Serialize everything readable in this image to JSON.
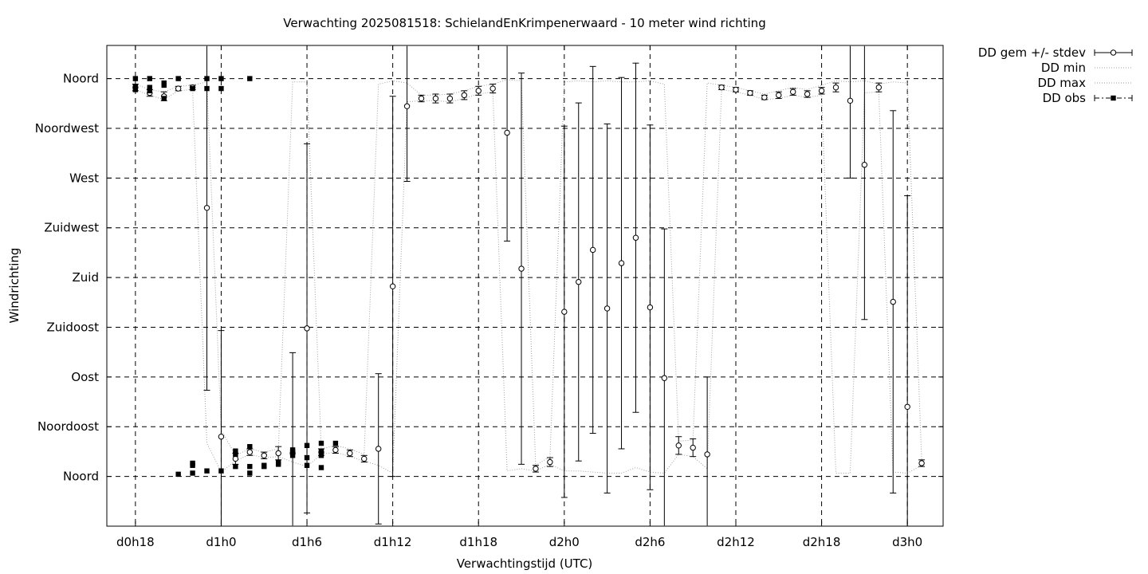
{
  "chart_data": {
    "type": "scatter",
    "title": "Verwachting 2025081518: SchielandEnKrimpenerwaard - 10 meter wind richting",
    "xlabel": "Verwachtingstijd (UTC)",
    "ylabel": "Windrichting",
    "x_unit": "hours since d0h18",
    "xlim": [
      -2,
      56.5
    ],
    "ylim": [
      -45,
      390
    ],
    "x_ticks": [
      {
        "x": 0,
        "label": "d0h18"
      },
      {
        "x": 6,
        "label": "d1h0"
      },
      {
        "x": 12,
        "label": "d1h6"
      },
      {
        "x": 18,
        "label": "d1h12"
      },
      {
        "x": 24,
        "label": "d1h18"
      },
      {
        "x": 30,
        "label": "d2h0"
      },
      {
        "x": 36,
        "label": "d2h6"
      },
      {
        "x": 42,
        "label": "d2h12"
      },
      {
        "x": 48,
        "label": "d2h18"
      },
      {
        "x": 54,
        "label": "d3h0"
      }
    ],
    "y_ticks": [
      {
        "y": 0,
        "label": "Noord"
      },
      {
        "y": 45,
        "label": "Noordoost"
      },
      {
        "y": 90,
        "label": "Oost"
      },
      {
        "y": 135,
        "label": "Zuidoost"
      },
      {
        "y": 180,
        "label": "Zuid"
      },
      {
        "y": 225,
        "label": "Zuidwest"
      },
      {
        "y": 270,
        "label": "West"
      },
      {
        "y": 315,
        "label": "Noordwest"
      },
      {
        "y": 360,
        "label": "Noord"
      }
    ],
    "grid": true,
    "legend_position": "top-right-outside",
    "legend": [
      {
        "label": "DD gem +/- stdev",
        "style": "errorbar-open-circle"
      },
      {
        "label": "DD min",
        "style": "dotted"
      },
      {
        "label": "DD max",
        "style": "dotted"
      },
      {
        "label": "DD obs",
        "style": "dash-dot-filled-square"
      }
    ],
    "series": [
      {
        "name": "DD gem +/- stdev",
        "points": [
          {
            "x": 0,
            "y": 352,
            "err": 3
          },
          {
            "x": 1,
            "y": 347,
            "err": 3
          },
          {
            "x": 2,
            "y": 344,
            "err": 4
          },
          {
            "x": 3,
            "y": 351,
            "err": 2
          },
          {
            "x": 4,
            "y": 352,
            "err": 2
          },
          {
            "x": 5,
            "y": 243,
            "err": 165
          },
          {
            "x": 6,
            "y": 36,
            "err": 96
          },
          {
            "x": 7,
            "y": 16,
            "err": 5
          },
          {
            "x": 8,
            "y": 22,
            "err": 3
          },
          {
            "x": 9,
            "y": 19,
            "err": 3
          },
          {
            "x": 10,
            "y": 21,
            "err": 6
          },
          {
            "x": 11,
            "y": 21,
            "err": 91
          },
          {
            "x": 12,
            "y": 134,
            "err": 167
          },
          {
            "x": 13,
            "y": 22,
            "err": 3
          },
          {
            "x": 14,
            "y": 24,
            "err": 3
          },
          {
            "x": 15,
            "y": 21,
            "err": 3
          },
          {
            "x": 16,
            "y": 16,
            "err": 3
          },
          {
            "x": 17,
            "y": 25,
            "err": 68
          },
          {
            "x": 18,
            "y": 172,
            "err": 172
          },
          {
            "x": 19,
            "y": 335,
            "err": 68
          },
          {
            "x": 20,
            "y": 342,
            "err": 3
          },
          {
            "x": 21,
            "y": 342,
            "err": 4
          },
          {
            "x": 22,
            "y": 342,
            "err": 4
          },
          {
            "x": 23,
            "y": 345,
            "err": 4
          },
          {
            "x": 24,
            "y": 349,
            "err": 4
          },
          {
            "x": 25,
            "y": 351,
            "err": 4
          },
          {
            "x": 26,
            "y": 311,
            "err": 98
          },
          {
            "x": 27,
            "y": 188,
            "err": 177
          },
          {
            "x": 28,
            "y": 7,
            "err": 3
          },
          {
            "x": 29,
            "y": 13,
            "err": 4
          },
          {
            "x": 30,
            "y": 149,
            "err": 168
          },
          {
            "x": 31,
            "y": 176,
            "err": 162
          },
          {
            "x": 32,
            "y": 205,
            "err": 166
          },
          {
            "x": 33,
            "y": 152,
            "err": 167
          },
          {
            "x": 34,
            "y": 193,
            "err": 168
          },
          {
            "x": 35,
            "y": 216,
            "err": 158
          },
          {
            "x": 36,
            "y": 153,
            "err": 165
          },
          {
            "x": 37,
            "y": 89,
            "err": 135
          },
          {
            "x": 38,
            "y": 28,
            "err": 8
          },
          {
            "x": 39,
            "y": 26,
            "err": 8
          },
          {
            "x": 40,
            "y": 20,
            "err": 70
          },
          {
            "x": 41,
            "y": 352,
            "err": 2
          },
          {
            "x": 42,
            "y": 350,
            "err": 2
          },
          {
            "x": 43,
            "y": 347,
            "err": 2
          },
          {
            "x": 44,
            "y": 343,
            "err": 2
          },
          {
            "x": 45,
            "y": 345,
            "err": 3
          },
          {
            "x": 46,
            "y": 348,
            "err": 3
          },
          {
            "x": 47,
            "y": 346,
            "err": 3
          },
          {
            "x": 48,
            "y": 349,
            "err": 3
          },
          {
            "x": 49,
            "y": 352,
            "err": 4
          },
          {
            "x": 50,
            "y": 340,
            "err": 70
          },
          {
            "x": 51,
            "y": 282,
            "err": 140
          },
          {
            "x": 52,
            "y": 352,
            "err": 4
          },
          {
            "x": 53,
            "y": 158,
            "err": 173
          },
          {
            "x": 54,
            "y": 63,
            "err": 191
          },
          {
            "x": 55,
            "y": 12,
            "err": 3
          }
        ]
      },
      {
        "name": "DD min",
        "points": [
          {
            "x": 0,
            "y": 350
          },
          {
            "x": 1,
            "y": 345
          },
          {
            "x": 2,
            "y": 341
          },
          {
            "x": 3,
            "y": 349
          },
          {
            "x": 4,
            "y": 350
          },
          {
            "x": 5,
            "y": 30
          },
          {
            "x": 6,
            "y": 4
          },
          {
            "x": 7,
            "y": 14
          },
          {
            "x": 8,
            "y": 20
          },
          {
            "x": 9,
            "y": 17
          },
          {
            "x": 10,
            "y": 18
          },
          {
            "x": 11,
            "y": 13
          },
          {
            "x": 12,
            "y": 9
          },
          {
            "x": 13,
            "y": 20
          },
          {
            "x": 14,
            "y": 22
          },
          {
            "x": 15,
            "y": 18
          },
          {
            "x": 16,
            "y": 14
          },
          {
            "x": 17,
            "y": 10
          },
          {
            "x": 18,
            "y": 3
          },
          {
            "x": 19,
            "y": 339
          },
          {
            "x": 20,
            "y": 340
          },
          {
            "x": 21,
            "y": 340
          },
          {
            "x": 22,
            "y": 339
          },
          {
            "x": 23,
            "y": 342
          },
          {
            "x": 24,
            "y": 346
          },
          {
            "x": 25,
            "y": 348
          },
          {
            "x": 26,
            "y": 5
          },
          {
            "x": 27,
            "y": 7
          },
          {
            "x": 28,
            "y": 5
          },
          {
            "x": 29,
            "y": 11
          },
          {
            "x": 30,
            "y": 5
          },
          {
            "x": 31,
            "y": 5
          },
          {
            "x": 32,
            "y": 4
          },
          {
            "x": 33,
            "y": 3
          },
          {
            "x": 34,
            "y": 3
          },
          {
            "x": 35,
            "y": 8
          },
          {
            "x": 36,
            "y": 4
          },
          {
            "x": 37,
            "y": 3
          },
          {
            "x": 38,
            "y": 20
          },
          {
            "x": 39,
            "y": 18
          },
          {
            "x": 40,
            "y": 7
          },
          {
            "x": 41,
            "y": 350
          },
          {
            "x": 42,
            "y": 348
          },
          {
            "x": 43,
            "y": 345
          },
          {
            "x": 44,
            "y": 341
          },
          {
            "x": 45,
            "y": 342
          },
          {
            "x": 46,
            "y": 345
          },
          {
            "x": 47,
            "y": 343
          },
          {
            "x": 48,
            "y": 345
          },
          {
            "x": 49,
            "y": 3
          },
          {
            "x": 50,
            "y": 3
          },
          {
            "x": 51,
            "y": 347
          },
          {
            "x": 52,
            "y": 348
          },
          {
            "x": 53,
            "y": 4
          },
          {
            "x": 54,
            "y": 3
          },
          {
            "x": 55,
            "y": 10
          }
        ]
      },
      {
        "name": "DD max",
        "points": [
          {
            "x": 0,
            "y": 355
          },
          {
            "x": 1,
            "y": 350
          },
          {
            "x": 2,
            "y": 348
          },
          {
            "x": 3,
            "y": 353
          },
          {
            "x": 4,
            "y": 354
          },
          {
            "x": 5,
            "y": 357
          },
          {
            "x": 6,
            "y": 42
          },
          {
            "x": 7,
            "y": 19
          },
          {
            "x": 8,
            "y": 25
          },
          {
            "x": 9,
            "y": 22
          },
          {
            "x": 10,
            "y": 25
          },
          {
            "x": 11,
            "y": 357
          },
          {
            "x": 12,
            "y": 357
          },
          {
            "x": 13,
            "y": 25
          },
          {
            "x": 14,
            "y": 28
          },
          {
            "x": 15,
            "y": 25
          },
          {
            "x": 16,
            "y": 20
          },
          {
            "x": 17,
            "y": 355
          },
          {
            "x": 18,
            "y": 358
          },
          {
            "x": 19,
            "y": 356
          },
          {
            "x": 20,
            "y": 345
          },
          {
            "x": 21,
            "y": 345
          },
          {
            "x": 22,
            "y": 346
          },
          {
            "x": 23,
            "y": 349
          },
          {
            "x": 24,
            "y": 353
          },
          {
            "x": 25,
            "y": 355
          },
          {
            "x": 26,
            "y": 359
          },
          {
            "x": 27,
            "y": 358
          },
          {
            "x": 28,
            "y": 10
          },
          {
            "x": 29,
            "y": 18
          },
          {
            "x": 30,
            "y": 357
          },
          {
            "x": 31,
            "y": 358
          },
          {
            "x": 32,
            "y": 357
          },
          {
            "x": 33,
            "y": 358
          },
          {
            "x": 34,
            "y": 357
          },
          {
            "x": 35,
            "y": 357
          },
          {
            "x": 36,
            "y": 358
          },
          {
            "x": 37,
            "y": 355
          },
          {
            "x": 38,
            "y": 32
          },
          {
            "x": 39,
            "y": 33
          },
          {
            "x": 40,
            "y": 356
          },
          {
            "x": 41,
            "y": 354
          },
          {
            "x": 42,
            "y": 352
          },
          {
            "x": 43,
            "y": 349
          },
          {
            "x": 44,
            "y": 346
          },
          {
            "x": 45,
            "y": 349
          },
          {
            "x": 46,
            "y": 352
          },
          {
            "x": 47,
            "y": 350
          },
          {
            "x": 48,
            "y": 354
          },
          {
            "x": 49,
            "y": 358
          },
          {
            "x": 50,
            "y": 357
          },
          {
            "x": 51,
            "y": 358
          },
          {
            "x": 52,
            "y": 355
          },
          {
            "x": 53,
            "y": 357
          },
          {
            "x": 54,
            "y": 356
          },
          {
            "x": 55,
            "y": 15
          }
        ]
      },
      {
        "name": "DD obs",
        "points": [
          {
            "x": 0,
            "y": 360
          },
          {
            "x": 0,
            "y": 353
          },
          {
            "x": 0,
            "y": 350
          },
          {
            "x": 1,
            "y": 360
          },
          {
            "x": 1,
            "y": 352
          },
          {
            "x": 1,
            "y": 349
          },
          {
            "x": 2,
            "y": 356
          },
          {
            "x": 2,
            "y": 354
          },
          {
            "x": 2,
            "y": 342
          },
          {
            "x": 3,
            "y": 360
          },
          {
            "x": 4,
            "y": 351
          },
          {
            "x": 5,
            "y": 360
          },
          {
            "x": 5,
            "y": 351
          },
          {
            "x": 6,
            "y": 360
          },
          {
            "x": 6,
            "y": 351
          },
          {
            "x": 8,
            "y": 360
          },
          {
            "x": 3,
            "y": 2
          },
          {
            "x": 4,
            "y": 3
          },
          {
            "x": 4,
            "y": 10
          },
          {
            "x": 4,
            "y": 12
          },
          {
            "x": 5,
            "y": 5
          },
          {
            "x": 6,
            "y": 5
          },
          {
            "x": 7,
            "y": 9
          },
          {
            "x": 7,
            "y": 20
          },
          {
            "x": 7,
            "y": 23
          },
          {
            "x": 8,
            "y": 3
          },
          {
            "x": 8,
            "y": 9
          },
          {
            "x": 8,
            "y": 27
          },
          {
            "x": 9,
            "y": 10
          },
          {
            "x": 9,
            "y": 9
          },
          {
            "x": 10,
            "y": 11
          },
          {
            "x": 10,
            "y": 13
          },
          {
            "x": 11,
            "y": 19
          },
          {
            "x": 11,
            "y": 22
          },
          {
            "x": 11,
            "y": 24
          },
          {
            "x": 12,
            "y": 10
          },
          {
            "x": 12,
            "y": 17
          },
          {
            "x": 12,
            "y": 28
          },
          {
            "x": 13,
            "y": 8
          },
          {
            "x": 13,
            "y": 19
          },
          {
            "x": 13,
            "y": 23
          },
          {
            "x": 13,
            "y": 30
          },
          {
            "x": 14,
            "y": 30
          }
        ]
      }
    ]
  }
}
